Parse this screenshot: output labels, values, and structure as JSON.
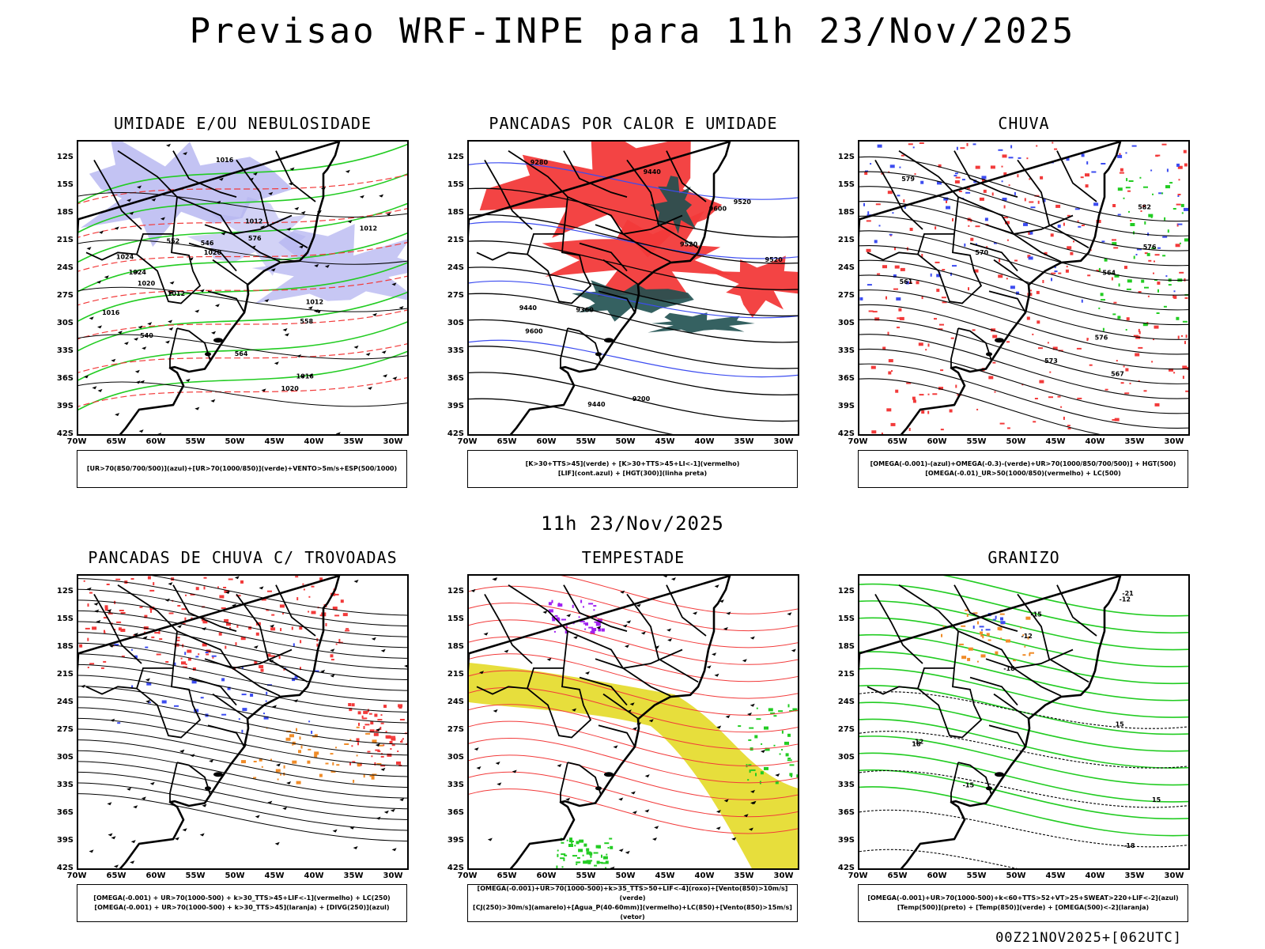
{
  "title": "Previsao WRF-INPE  para 11h 23/Nov/2025",
  "subtitle": "11h 23/Nov/2025",
  "footer": "00Z21NOV2025+[062UTC]",
  "axes": {
    "latitudes": [
      "12S",
      "15S",
      "18S",
      "21S",
      "24S",
      "27S",
      "30S",
      "33S",
      "36S",
      "39S",
      "42S"
    ],
    "longitudes": [
      "70W",
      "65W",
      "60W",
      "55W",
      "50W",
      "45W",
      "40W",
      "35W",
      "30W"
    ]
  },
  "colors": {
    "blue": "#3c4cf0",
    "green": "#22cc22",
    "red": "#f23a3a",
    "lavender": "#b4b4f0",
    "teal": "#1f5050",
    "yellow": "#e6dc32",
    "orange": "#f08c28",
    "purple": "#a020f0"
  },
  "panels": [
    {
      "title": "UMIDADE E/OU NEBULOSIDADE",
      "legend": [
        "[UR>70(850/700/500)](azul)+[UR>70(1000/850)](verde)+VENTO>5m/s+ESP(500/1000)"
      ],
      "contour_labels": [
        "1012",
        "1012",
        "1016",
        "1020",
        "1012",
        "1016",
        "1012",
        "1016",
        "1020",
        "1024",
        "1024",
        "1020",
        "576",
        "564",
        "558",
        "546",
        "552",
        "540"
      ]
    },
    {
      "title": "PANCADAS POR CALOR E UMIDADE",
      "legend": [
        "[K>30+TTS>45](verde)  +  [K>30+TTS>45+LI<-1](vermelho)",
        "[LIF](cont.azul)  +  [HGT(300)](linha preta)"
      ],
      "contour_labels": [
        "9600",
        "9600",
        "9520",
        "9520",
        "9520",
        "9440",
        "9440",
        "9360",
        "9280",
        "9200",
        "9440"
      ]
    },
    {
      "title": "CHUVA",
      "legend": [
        "[OMEGA(-0.001)-(azul)+OMEGA(-0.3)-(verde)+UR>70(1000/850/700/500)]  +  HGT(500)",
        "[OMEGA(-0.01)_UR>50(1000/850)(vermelho)  +  LC(500)"
      ],
      "contour_labels": [
        "582",
        "579",
        "576",
        "576",
        "573",
        "570",
        "567",
        "564",
        "561"
      ]
    },
    {
      "title": "PANCADAS DE CHUVA C/ TROVOADAS",
      "legend": [
        "[OMEGA(-0.001)  +  UR>70(1000-500)  +  k>30_TTS>45+LIF<-1](vermelho)  +  LC(250)",
        "[OMEGA(-0.001)  +  UR>70(1000-500)  +  k>30_TTS>45](laranja)  +  [DIVG(250)](azul)"
      ],
      "contour_labels": []
    },
    {
      "title": "TEMPESTADE",
      "legend": [
        "[OMEGA(-0.001)+UR>70(1000-500)+k>35_TTS>50+LIF<-4](roxo)+[Vento(850)>10m/s](verde)",
        "[CJ(250)>30m/s](amarelo)+[Agua_P(40-60mm)](vermelho)+LC(850)+[Vento(850)>15m/s](vetor)"
      ],
      "contour_labels": []
    },
    {
      "title": "GRANIZO",
      "legend": [
        "[OMEGA(-0.001)+UR>70(1000-500)+k<60+TTS>52+VT>25+SWEAT>220+LIF<-2](azul)",
        "[Temp(500)](preto)  +  [Temp(850)](verde)  +  [OMEGA(500)<-2](laranja)"
      ],
      "contour_labels": [
        "-12",
        "-12",
        "-15",
        "-15",
        "-18",
        "-18",
        "-21",
        "-12",
        "15",
        "15",
        "18"
      ]
    }
  ]
}
